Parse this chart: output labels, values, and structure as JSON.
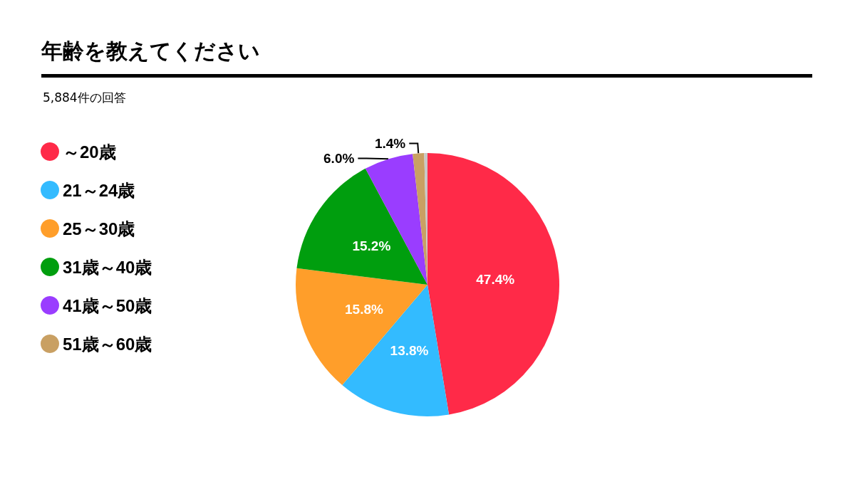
{
  "chart_data": {
    "type": "pie",
    "title": "年齢を教えてください",
    "subtitle": "5,884件の回答",
    "categories": [
      "～20歳",
      "21～24歳",
      "25～30歳",
      "31歳～40歳",
      "41歳～50歳",
      "51歳～60歳",
      null
    ],
    "values": [
      47.4,
      13.8,
      15.8,
      15.2,
      6.0,
      1.4,
      0.4
    ],
    "colors": [
      "#ff2a48",
      "#33bbff",
      "#ff9e2a",
      "#009e0e",
      "#9a3dff",
      "#c9a063",
      "#c8c8c8"
    ],
    "value_labels": [
      "47.4%",
      "13.8%",
      "15.8%",
      "15.2%",
      "6.0%",
      "1.4%",
      null
    ],
    "legend": "left"
  }
}
